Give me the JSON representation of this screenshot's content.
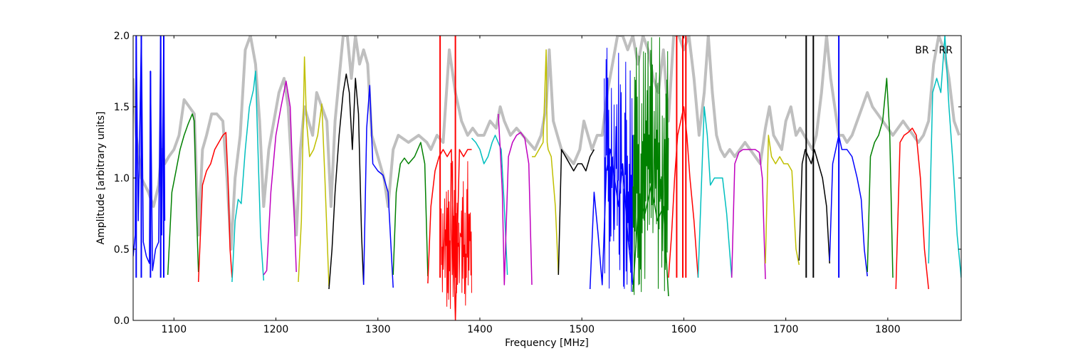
{
  "chart_data": {
    "type": "line",
    "xlabel": "Frequency [MHz]",
    "ylabel": "Amplitude [arbitrary units]",
    "xlim": [
      1060,
      1872
    ],
    "ylim": [
      0.0,
      2.0
    ],
    "xticks": [
      1100,
      1200,
      1300,
      1400,
      1500,
      1600,
      1700,
      1800
    ],
    "yticks": [
      0.0,
      0.5,
      1.0,
      1.5,
      2.0
    ],
    "ytick_labels": [
      "0.0",
      "0.5",
      "1.0",
      "1.5",
      "2.0"
    ],
    "annotation": "BR - RR",
    "annotation_position": "top-right",
    "grid": false,
    "envelope": {
      "color": "#bfbfbf",
      "x": [
        1060,
        1063,
        1068,
        1075,
        1080,
        1085,
        1088,
        1091,
        1095,
        1100,
        1105,
        1110,
        1115,
        1120,
        1124,
        1128,
        1132,
        1137,
        1142,
        1148,
        1152,
        1156,
        1160,
        1165,
        1170,
        1175,
        1180,
        1184,
        1188,
        1193,
        1198,
        1203,
        1208,
        1212,
        1216,
        1220,
        1224,
        1228,
        1232,
        1236,
        1240,
        1245,
        1250,
        1254,
        1258,
        1262,
        1266,
        1270,
        1274,
        1278,
        1282,
        1286,
        1290,
        1294,
        1298,
        1302,
        1306,
        1310,
        1315,
        1320,
        1330,
        1340,
        1348,
        1352,
        1358,
        1364,
        1370,
        1376,
        1382,
        1388,
        1393,
        1398,
        1404,
        1410,
        1416,
        1420,
        1424,
        1430,
        1436,
        1442,
        1448,
        1454,
        1460,
        1465,
        1468,
        1472,
        1476,
        1480,
        1486,
        1492,
        1498,
        1502,
        1506,
        1510,
        1515,
        1520,
        1525,
        1530,
        1535,
        1540,
        1545,
        1550,
        1555,
        1560,
        1565,
        1570,
        1575,
        1580,
        1585,
        1590,
        1595,
        1600,
        1605,
        1610,
        1615,
        1620,
        1624,
        1628,
        1632,
        1636,
        1640,
        1645,
        1650,
        1655,
        1660,
        1665,
        1670,
        1675,
        1680,
        1684,
        1688,
        1692,
        1696,
        1700,
        1705,
        1710,
        1714,
        1718,
        1722,
        1726,
        1730,
        1735,
        1740,
        1744,
        1748,
        1752,
        1756,
        1760,
        1765,
        1770,
        1775,
        1780,
        1785,
        1790,
        1795,
        1800,
        1805,
        1810,
        1815,
        1820,
        1825,
        1830,
        1835,
        1840,
        1845,
        1850,
        1855,
        1860,
        1865,
        1870
      ],
      "y": [
        1.7,
        1.3,
        1.0,
        0.9,
        0.8,
        0.95,
        1.2,
        1.1,
        1.15,
        1.2,
        1.3,
        1.55,
        1.5,
        1.45,
        0.6,
        1.2,
        1.3,
        1.45,
        1.45,
        1.4,
        1.0,
        0.5,
        1.0,
        1.3,
        1.9,
        2.0,
        1.8,
        1.4,
        0.8,
        1.2,
        1.4,
        1.6,
        1.7,
        1.5,
        1.0,
        0.6,
        1.2,
        1.5,
        1.4,
        1.3,
        1.6,
        1.5,
        1.4,
        0.8,
        1.4,
        1.7,
        2.0,
        2.0,
        1.7,
        2.0,
        1.8,
        1.9,
        1.8,
        1.3,
        1.2,
        1.1,
        1.0,
        0.8,
        1.2,
        1.3,
        1.25,
        1.3,
        1.25,
        1.2,
        1.3,
        1.25,
        1.9,
        1.6,
        1.4,
        1.3,
        1.35,
        1.3,
        1.3,
        1.4,
        1.35,
        1.5,
        1.4,
        1.3,
        1.35,
        1.3,
        1.25,
        1.2,
        1.3,
        1.5,
        1.9,
        1.4,
        1.3,
        1.2,
        1.15,
        1.1,
        1.2,
        1.4,
        1.3,
        1.2,
        1.3,
        1.3,
        1.6,
        1.8,
        2.0,
        2.0,
        1.9,
        2.0,
        1.8,
        2.0,
        1.9,
        1.7,
        1.6,
        1.9,
        1.4,
        2.0,
        2.0,
        1.9,
        2.0,
        1.7,
        1.3,
        1.6,
        2.0,
        1.6,
        1.3,
        1.2,
        1.15,
        1.2,
        1.15,
        1.2,
        1.25,
        1.2,
        1.15,
        1.1,
        1.35,
        1.5,
        1.3,
        1.25,
        1.2,
        1.4,
        1.5,
        1.3,
        1.35,
        1.3,
        1.25,
        1.2,
        1.3,
        1.6,
        2.0,
        1.7,
        1.5,
        1.3,
        1.3,
        1.25,
        1.3,
        1.4,
        1.5,
        1.6,
        1.5,
        1.45,
        1.4,
        1.35,
        1.3,
        1.35,
        1.4,
        1.35,
        1.3,
        1.25,
        1.3,
        1.4,
        1.8,
        2.0,
        1.9,
        1.7,
        1.4,
        1.3
      ]
    },
    "series": [
      {
        "color": "#0000ff",
        "spikes": [
          [
            1063,
            2.0
          ],
          [
            1068,
            2.0
          ],
          [
            1077,
            1.75
          ],
          [
            1087,
            2.0
          ],
          [
            1090,
            2.0
          ]
        ],
        "x": [
          1060,
          1062,
          1063,
          1065,
          1068,
          1070,
          1073,
          1076,
          1077,
          1079,
          1082,
          1085,
          1087,
          1088,
          1090,
          1091
        ],
        "y": [
          0.45,
          0.6,
          2.0,
          0.7,
          2.0,
          0.55,
          0.45,
          0.4,
          1.75,
          0.35,
          0.5,
          0.55,
          2.0,
          0.6,
          2.0,
          0.7
        ]
      },
      {
        "color": "#008000",
        "x": [
          1094,
          1098,
          1102,
          1106,
          1110,
          1114,
          1118,
          1120,
          1122,
          1124
        ],
        "y": [
          0.32,
          0.9,
          1.05,
          1.2,
          1.3,
          1.38,
          1.45,
          1.4,
          0.8,
          0.34
        ]
      },
      {
        "color": "#ff0000",
        "x": [
          1124,
          1128,
          1132,
          1136,
          1140,
          1144,
          1148,
          1151,
          1153,
          1155,
          1157
        ],
        "y": [
          0.27,
          0.95,
          1.05,
          1.1,
          1.2,
          1.25,
          1.3,
          1.32,
          1.0,
          0.5,
          0.3
        ]
      },
      {
        "color": "#00bfbf",
        "x": [
          1157,
          1160,
          1163,
          1166,
          1170,
          1174,
          1178,
          1180,
          1182,
          1185,
          1188
        ],
        "y": [
          0.27,
          0.7,
          0.85,
          0.82,
          1.2,
          1.5,
          1.62,
          1.75,
          1.3,
          0.6,
          0.28
        ]
      },
      {
        "color": "#bf00bf",
        "x": [
          1188,
          1191,
          1195,
          1200,
          1205,
          1210,
          1214,
          1217,
          1220
        ],
        "y": [
          0.32,
          0.35,
          0.9,
          1.3,
          1.5,
          1.68,
          1.5,
          0.9,
          0.34
        ]
      },
      {
        "color": "#bfbf00",
        "x": [
          1222,
          1225,
          1228,
          1230,
          1233,
          1237,
          1241,
          1245,
          1248,
          1252
        ],
        "y": [
          0.27,
          0.7,
          1.85,
          1.4,
          1.15,
          1.2,
          1.3,
          1.52,
          1.0,
          0.24
        ]
      },
      {
        "color": "#000000",
        "x": [
          1252,
          1255,
          1258,
          1262,
          1266,
          1269,
          1272,
          1275,
          1278,
          1281,
          1284,
          1286
        ],
        "y": [
          0.22,
          0.5,
          0.9,
          1.3,
          1.6,
          1.73,
          1.6,
          1.2,
          1.7,
          1.45,
          0.6,
          0.25
        ]
      },
      {
        "color": "#0000ff",
        "x": [
          1286,
          1289,
          1292,
          1295,
          1300,
          1305,
          1310,
          1315
        ],
        "y": [
          0.25,
          1.35,
          1.65,
          1.1,
          1.05,
          1.02,
          0.9,
          0.23
        ]
      },
      {
        "color": "#008000",
        "x": [
          1315,
          1318,
          1322,
          1326,
          1330,
          1336,
          1342,
          1346,
          1349
        ],
        "y": [
          0.32,
          0.9,
          1.1,
          1.14,
          1.1,
          1.15,
          1.25,
          1.1,
          0.31
        ]
      },
      {
        "color": "#ff0000",
        "spikes": [
          [
            1361,
            2.0
          ],
          [
            1376,
            2.0
          ]
        ],
        "noisy": [
          1362,
          1392,
          0.05,
          1.15
        ],
        "x": [
          1349,
          1352,
          1356,
          1360,
          1364,
          1368,
          1372,
          1376,
          1380,
          1384,
          1388,
          1392
        ],
        "y": [
          0.26,
          0.8,
          1.05,
          1.15,
          1.2,
          1.15,
          1.2,
          0.0,
          1.2,
          1.15,
          1.2,
          1.2
        ]
      },
      {
        "color": "#00bfbf",
        "x": [
          1392,
          1396,
          1400,
          1404,
          1408,
          1412,
          1415,
          1418,
          1421,
          1424,
          1427
        ],
        "y": [
          1.28,
          1.25,
          1.2,
          1.1,
          1.15,
          1.25,
          1.3,
          1.25,
          1.2,
          0.8,
          0.32
        ]
      },
      {
        "color": "#bf00bf",
        "x": [
          1418,
          1420,
          1422,
          1424,
          1428,
          1432,
          1436,
          1440,
          1444,
          1448,
          1451
        ],
        "y": [
          1.45,
          1.2,
          0.9,
          0.25,
          1.15,
          1.25,
          1.3,
          1.32,
          1.28,
          1.1,
          0.25
        ]
      },
      {
        "color": "#bfbf00",
        "x": [
          1451,
          1454,
          1458,
          1462,
          1465,
          1466,
          1467,
          1470,
          1474,
          1477
        ],
        "y": [
          1.15,
          1.15,
          1.2,
          1.25,
          1.9,
          1.25,
          1.2,
          1.15,
          0.8,
          0.32
        ]
      },
      {
        "color": "#000000",
        "x": [
          1477,
          1480,
          1484,
          1488,
          1492,
          1496,
          1500,
          1504,
          1508,
          1512
        ],
        "y": [
          0.32,
          1.2,
          1.15,
          1.1,
          1.05,
          1.1,
          1.1,
          1.05,
          1.15,
          1.2
        ]
      },
      {
        "color": "#0000ff",
        "noisy": [
          1522,
          1550,
          0.2,
          2.0
        ],
        "x": [
          1508,
          1512,
          1516,
          1520,
          1524,
          1528,
          1532,
          1536,
          1540,
          1545,
          1550
        ],
        "y": [
          0.22,
          0.9,
          0.6,
          0.25,
          1.05,
          1.2,
          1.0,
          0.8,
          1.1,
          0.6,
          0.25
        ]
      },
      {
        "color": "#008000",
        "noisy": [
          1550,
          1585,
          0.17,
          2.0
        ],
        "x": [
          1550,
          1556,
          1562,
          1568,
          1574,
          1580,
          1585
        ],
        "y": [
          0.2,
          0.85,
          0.75,
          0.95,
          0.7,
          0.8,
          0.17
        ]
      },
      {
        "color": "#ff0000",
        "spikes": [
          [
            1593,
            2.0
          ],
          [
            1599,
            2.0
          ],
          [
            1602,
            2.0
          ]
        ],
        "x": [
          1585,
          1588,
          1591,
          1594,
          1597,
          1600,
          1603,
          1606,
          1610,
          1614
        ],
        "y": [
          0.3,
          0.6,
          1.0,
          1.3,
          1.4,
          1.5,
          1.3,
          1.0,
          0.7,
          0.3
        ]
      },
      {
        "color": "#00bfbf",
        "x": [
          1614,
          1617,
          1620,
          1623,
          1626,
          1630,
          1634,
          1638,
          1642,
          1647
        ],
        "y": [
          0.3,
          0.9,
          1.5,
          1.3,
          0.95,
          1.0,
          1.0,
          1.0,
          0.75,
          0.3
        ]
      },
      {
        "color": "#bf00bf",
        "x": [
          1647,
          1650,
          1654,
          1658,
          1662,
          1666,
          1670,
          1674,
          1677,
          1680
        ],
        "y": [
          0.3,
          1.1,
          1.18,
          1.2,
          1.2,
          1.2,
          1.2,
          1.18,
          1.0,
          0.29
        ]
      },
      {
        "color": "#bfbf00",
        "x": [
          1680,
          1683,
          1686,
          1690,
          1694,
          1698,
          1702,
          1706,
          1710,
          1713
        ],
        "y": [
          0.4,
          1.3,
          1.15,
          1.1,
          1.15,
          1.1,
          1.1,
          1.05,
          0.5,
          0.39
        ]
      },
      {
        "color": "#000000",
        "spikes": [
          [
            1720,
            2.0
          ],
          [
            1727,
            2.0
          ]
        ],
        "x": [
          1713,
          1716,
          1719,
          1722,
          1725,
          1728,
          1732,
          1736,
          1740,
          1743
        ],
        "y": [
          0.42,
          1.1,
          1.2,
          1.15,
          1.1,
          1.2,
          1.1,
          1.0,
          0.8,
          0.4
        ]
      },
      {
        "color": "#0000ff",
        "spikes": [
          [
            1752,
            2.0
          ]
        ],
        "x": [
          1743,
          1746,
          1749,
          1752,
          1755,
          1760,
          1765,
          1770,
          1774,
          1777,
          1780
        ],
        "y": [
          0.42,
          1.1,
          1.2,
          1.3,
          1.2,
          1.2,
          1.15,
          1.0,
          0.85,
          0.5,
          0.31
        ]
      },
      {
        "color": "#008000",
        "x": [
          1780,
          1783,
          1787,
          1791,
          1795,
          1799,
          1802,
          1805
        ],
        "y": [
          0.34,
          1.15,
          1.25,
          1.3,
          1.4,
          1.7,
          1.3,
          0.3
        ]
      },
      {
        "color": "#ff0000",
        "x": [
          1808,
          1812,
          1816,
          1820,
          1824,
          1828,
          1832,
          1836,
          1840
        ],
        "y": [
          0.22,
          1.25,
          1.3,
          1.32,
          1.35,
          1.3,
          1.0,
          0.5,
          0.22
        ]
      },
      {
        "color": "#00bfbf",
        "x": [
          1840,
          1844,
          1848,
          1852,
          1856,
          1860,
          1864,
          1868,
          1872
        ],
        "y": [
          0.4,
          1.6,
          1.7,
          1.6,
          2.0,
          1.5,
          1.1,
          0.6,
          0.3
        ]
      }
    ]
  }
}
